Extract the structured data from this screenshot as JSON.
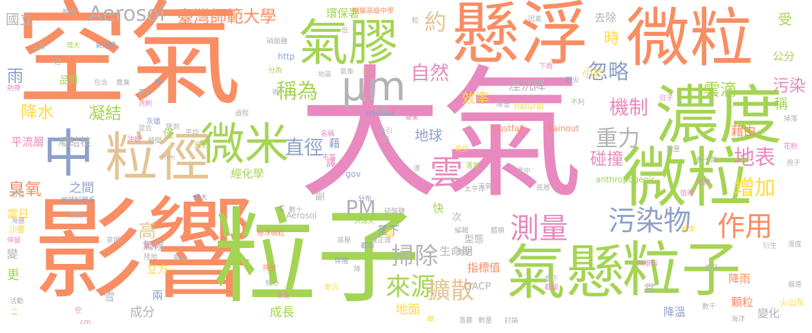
{
  "words": [
    {
      "text": "大氣",
      "color": "#e889bf"
    },
    {
      "text": "空氣",
      "color": "#f98d63"
    },
    {
      "text": "影響",
      "color": "#f98d63"
    },
    {
      "text": "粒子",
      "color": "#a4d453"
    },
    {
      "text": "懸浮",
      "color": "#f98d63"
    },
    {
      "text": "微粒",
      "color": "#f98d63"
    },
    {
      "text": "濃度",
      "color": "#a4d453"
    },
    {
      "text": "微粒",
      "color": "#a4d453"
    },
    {
      "text": "氣懸",
      "color": "#a4d453"
    },
    {
      "text": "粒子",
      "color": "#a4d453"
    },
    {
      "text": "氣膠",
      "color": "#a4d453"
    },
    {
      "text": "粒徑",
      "color": "#e4c493"
    },
    {
      "text": "微米",
      "color": "#a4d453"
    },
    {
      "text": "中",
      "color": "#8da0ca"
    },
    {
      "text": "μm",
      "color": "#b3b3b3"
    },
    {
      "text": "測量",
      "color": "#e889bf"
    },
    {
      "text": "污染物",
      "color": "#8da0ca"
    },
    {
      "text": "作用",
      "color": "#f98d63"
    },
    {
      "text": "雲",
      "color": "#e889bf"
    },
    {
      "text": "Aerosol",
      "color": "#b3b3b3"
    },
    {
      "text": "臺灣師範大學",
      "color": "#f98d63"
    },
    {
      "text": "稱為",
      "color": "#a4d453"
    },
    {
      "text": "直徑",
      "color": "#8da0ca"
    },
    {
      "text": "重力",
      "color": "#b3b3b3"
    },
    {
      "text": "機制",
      "color": "#e889bf"
    },
    {
      "text": "來源",
      "color": "#a4d453"
    },
    {
      "text": "掃除",
      "color": "#b3b3b3"
    },
    {
      "text": "擴散",
      "color": "#e4c493"
    },
    {
      "text": "PM",
      "color": "#b3b3b3"
    },
    {
      "text": "忽略",
      "color": "#8da0ca"
    },
    {
      "text": "自然",
      "color": "#e889bf"
    },
    {
      "text": "約",
      "color": "#e4c493"
    },
    {
      "text": "降水",
      "color": "#ffd93b"
    },
    {
      "text": "凝結",
      "color": "#a4d453"
    },
    {
      "text": "臭氧",
      "color": "#f98d63"
    },
    {
      "text": "雨",
      "color": "#8da0ca"
    },
    {
      "text": "地表",
      "color": "#e889bf"
    },
    {
      "text": "增加",
      "color": "#ffd93b"
    },
    {
      "text": "雲滴",
      "color": "#a4d453"
    },
    {
      "text": "污染",
      "color": "#e889bf"
    },
    {
      "text": "碰撞",
      "color": "#e889bf"
    },
    {
      "text": "高",
      "color": "#e4c493"
    },
    {
      "text": "時",
      "color": "#ffd93b"
    },
    {
      "text": "地球",
      "color": "#8da0ca"
    },
    {
      "text": "效率",
      "color": "#ffd93b"
    },
    {
      "text": "溼沉降",
      "color": "#b3b3b3"
    },
    {
      "text": "小於",
      "color": "#ffd93b"
    },
    {
      "text": "藉由",
      "color": "#f98d63"
    },
    {
      "text": "稱",
      "color": "#a4d453"
    },
    {
      "text": "受",
      "color": "#a4d453"
    },
    {
      "text": "公分",
      "color": "#a4d453"
    },
    {
      "text": "去除",
      "color": "#b3b3b3"
    },
    {
      "text": "環保署",
      "color": "#a4d453"
    },
    {
      "text": "國立",
      "color": "#b3b3b3"
    },
    {
      "text": "之間",
      "color": "#8da0ca"
    },
    {
      "text": "經化學",
      "color": "#a4d453"
    },
    {
      "text": "平流層",
      "color": "#e889bf"
    },
    {
      "text": "凝結核",
      "color": "#b3b3b3"
    },
    {
      "text": "成長",
      "color": "#a4d453"
    },
    {
      "text": "地面",
      "color": "#ffd93b"
    },
    {
      "text": "成分",
      "color": "#b3b3b3"
    },
    {
      "text": "生命期",
      "color": "#b3b3b3"
    },
    {
      "text": "指標值",
      "color": "#f98d63"
    },
    {
      "text": "降雨",
      "color": "#f98d63"
    },
    {
      "text": "顆粒",
      "color": "#f98d63"
    },
    {
      "text": "降溫",
      "color": "#8da0ca"
    },
    {
      "text": "變化",
      "color": "#b3b3b3"
    },
    {
      "text": "常",
      "color": "#b3b3b3"
    },
    {
      "text": "落下",
      "color": "#8da0ca"
    },
    {
      "text": "立方",
      "color": "#ffd93b"
    },
    {
      "text": "氣候",
      "color": "#b3b3b3"
    },
    {
      "text": "GACP",
      "color": "#b3b3b3"
    },
    {
      "text": "Aerosol",
      "color": "#b3b3b3"
    },
    {
      "text": "附屬高級中學",
      "color": "#f98d63"
    },
    {
      "text": "anthropogenic",
      "color": "#a4d453"
    },
    {
      "text": "Dustfall",
      "color": "#f98d63"
    },
    {
      "text": "Rainout",
      "color": "#f98d63"
    },
    {
      "text": "Washout",
      "color": "#8da0ca"
    },
    {
      "text": "natural",
      "color": "#ffd93b"
    },
    {
      "text": "http",
      "color": "#8da0ca"
    },
    {
      "text": "gov",
      "color": "#8da0ca"
    },
    {
      "text": "mm",
      "color": "#b3b3b3"
    },
    {
      "text": "cm",
      "color": "#e889bf"
    },
    {
      "text": "C",
      "color": "#8da0ca"
    },
    {
      "text": "火山灰",
      "color": "#ffd93b"
    },
    {
      "text": "海洋",
      "color": "#b3b3b3"
    },
    {
      "text": "當日",
      "color": "#ffd93b"
    },
    {
      "text": "沙塵",
      "color": "#ffd93b"
    },
    {
      "text": "更",
      "color": "#a4d453"
    },
    {
      "text": "變",
      "color": "#b3b3b3"
    },
    {
      "text": "雪",
      "color": "#b3b3b3"
    },
    {
      "text": "兩",
      "color": "#8da0ca"
    },
    {
      "text": "快",
      "color": "#a4d453"
    },
    {
      "text": "次",
      "color": "#b3b3b3"
    },
    {
      "text": "副",
      "color": "#b3b3b3"
    },
    {
      "text": "指",
      "color": "#ffd93b"
    },
    {
      "text": "譯",
      "color": "#e889bf"
    },
    {
      "text": "藉",
      "color": "#8da0ca"
    },
    {
      "text": "型態",
      "color": "#b3b3b3"
    },
    {
      "text": "品質",
      "color": "#a4d453"
    },
    {
      "text": "工業",
      "color": "#b3b3b3"
    },
    {
      "text": "熱帶",
      "color": "#e889bf"
    },
    {
      "text": "教授",
      "color": "#b3b3b3"
    },
    {
      "text": "灰燼",
      "color": "#8da0ca"
    },
    {
      "text": "增大",
      "color": "#a4d453"
    },
    {
      "text": "氣溶膠",
      "color": "#8da0ca"
    },
    {
      "text": "硝酸鹽",
      "color": "#b3b3b3"
    },
    {
      "text": "硫酸鹽",
      "color": "#b3b3b3"
    },
    {
      "text": "分為",
      "color": "#a4d453"
    },
    {
      "text": "地區",
      "color": "#b3b3b3"
    },
    {
      "text": "牽引",
      "color": "#b3b3b3"
    },
    {
      "text": "洗刷",
      "color": "#e889bf"
    },
    {
      "text": "混合",
      "color": "#b3b3b3"
    },
    {
      "text": "時間",
      "color": "#b3b3b3"
    },
    {
      "text": "名稱",
      "color": "#e889bf"
    },
    {
      "text": "分布",
      "color": "#8da0ca"
    },
    {
      "text": "數十",
      "color": "#b3b3b3"
    },
    {
      "text": "成大",
      "color": "#8da0ca"
    },
    {
      "text": "太平洋",
      "color": "#b3b3b3"
    },
    {
      "text": "天氣",
      "color": "#b3b3b3"
    },
    {
      "text": "編輯",
      "color": "#b3b3b3"
    },
    {
      "text": "體積",
      "color": "#b3b3b3"
    },
    {
      "text": "都市",
      "color": "#8da0ca"
    },
    {
      "text": "高壓",
      "color": "#b3b3b3"
    },
    {
      "text": "排放",
      "color": "#f98d63"
    },
    {
      "text": "氣流",
      "color": "#e889bf"
    },
    {
      "text": "陸地",
      "color": "#b3b3b3"
    },
    {
      "text": "風速",
      "color": "#b3b3b3"
    },
    {
      "text": "原生",
      "color": "#e889bf"
    },
    {
      "text": "活動",
      "color": "#b3b3b3"
    },
    {
      "text": "意即",
      "color": "#b3b3b3"
    },
    {
      "text": "停留",
      "color": "#e889bf"
    },
    {
      "text": "科學科",
      "color": "#e889bf"
    },
    {
      "text": "責任",
      "color": "#b3b3b3"
    },
    {
      "text": "數量",
      "color": "#b3b3b3"
    },
    {
      "text": "討論",
      "color": "#b3b3b3"
    },
    {
      "text": "衍生",
      "color": "#b3b3b3"
    },
    {
      "text": "溼度",
      "color": "#b3b3b3"
    },
    {
      "text": "偏遠",
      "color": "#b3b3b3"
    },
    {
      "text": "花粉",
      "color": "#e889bf"
    },
    {
      "text": "孢子",
      "color": "#b3b3b3"
    },
    {
      "text": "掉落",
      "color": "#b3b3b3"
    },
    {
      "text": "因素",
      "color": "#b3b3b3"
    },
    {
      "text": "質量",
      "color": "#b3b3b3"
    },
    {
      "text": "數十萬",
      "color": "#b3b3b3"
    },
    {
      "text": "老師",
      "color": "#e889bf"
    },
    {
      "text": "值得",
      "color": "#e889bf"
    },
    {
      "text": "夏季",
      "color": "#ffd93b"
    },
    {
      "text": "底層",
      "color": "#b3b3b3"
    },
    {
      "text": "乾沉",
      "color": "#ffd93b"
    },
    {
      "text": "伴隨",
      "color": "#8da0ca"
    },
    {
      "text": "洪逸文",
      "color": "#a4d453"
    },
    {
      "text": "陳正達",
      "color": "#b3b3b3"
    },
    {
      "text": "短暫",
      "color": "#b3b3b3"
    },
    {
      "text": "吸引",
      "color": "#b3b3b3"
    },
    {
      "text": "凝聚",
      "color": "#e889bf"
    },
    {
      "text": "野火",
      "color": "#8da0ca"
    },
    {
      "text": "數百",
      "color": "#b3b3b3"
    },
    {
      "text": "海鹽",
      "color": "#b3b3b3"
    },
    {
      "text": "地球科學系",
      "color": "#8da0ca"
    },
    {
      "text": "氣象",
      "color": "#b3b3b3"
    },
    {
      "text": "空",
      "color": "#e889bf"
    },
    {
      "text": "二",
      "color": "#a4d453"
    },
    {
      "text": "農業",
      "color": "#b3b3b3"
    },
    {
      "text": "包含",
      "color": "#b3b3b3"
    },
    {
      "text": "週",
      "color": "#b3b3b3"
    },
    {
      "text": "障",
      "color": "#8da0ca"
    },
    {
      "text": "低",
      "color": "#b3b3b3"
    },
    {
      "text": "沉",
      "color": "#a4d453"
    },
    {
      "text": "粒",
      "color": "#b3b3b3"
    },
    {
      "text": "微",
      "color": "#b3b3b3"
    },
    {
      "text": "極",
      "color": "#b3b3b3"
    },
    {
      "text": "達",
      "color": "#b3b3b3"
    },
    {
      "text": "降",
      "color": "#b3b3b3"
    },
    {
      "text": "頗",
      "color": "#ffd93b"
    },
    {
      "text": "天空",
      "color": "#a4d453"
    },
    {
      "text": "下雨",
      "color": "#e889bf"
    },
    {
      "text": "降雪",
      "color": "#b3b3b3"
    },
    {
      "text": "日子",
      "color": "#e889bf"
    },
    {
      "text": "英文",
      "color": "#ffd93b"
    },
    {
      "text": "落到",
      "color": "#a4d453"
    },
    {
      "text": "不利",
      "color": "#b3b3b3"
    },
    {
      "text": "過程",
      "color": "#b3b3b3"
    },
    {
      "text": "降到",
      "color": "#b3b3b3"
    },
    {
      "text": "不等",
      "color": "#e889bf"
    },
    {
      "text": "隱定",
      "color": "#b3b3b3"
    },
    {
      "text": "落塵",
      "color": "#b3b3b3"
    },
    {
      "text": "雲下",
      "color": "#b3b3b3"
    },
    {
      "text": "截留",
      "color": "#e889bf"
    },
    {
      "text": "核心",
      "color": "#b3b3b3"
    },
    {
      "text": "懸浮微粒",
      "color": "#f98d63"
    },
    {
      "text": "平均",
      "color": "#b3b3b3"
    },
    {
      "text": "數千",
      "color": "#b3b3b3"
    },
    {
      "text": "原因",
      "color": "#b3b3b3"
    },
    {
      "text": "沖刷",
      "color": "#e889bf"
    },
    {
      "text": "雲中",
      "color": "#b3b3b3"
    },
    {
      "text": "僅",
      "color": "#a4d453"
    }
  ]
}
